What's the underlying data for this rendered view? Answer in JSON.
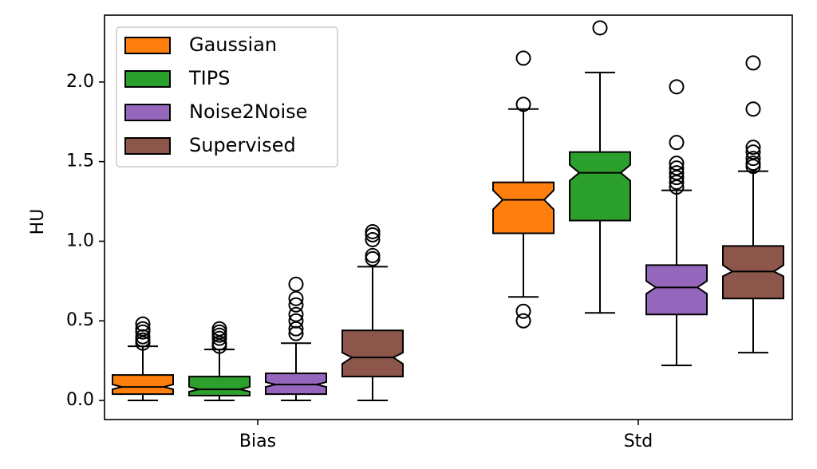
{
  "chart_data": {
    "type": "boxplot",
    "notched": true,
    "groups": [
      "Bias",
      "Std"
    ],
    "ylabel": "HU",
    "xlabel": "",
    "ylim": [
      -0.12,
      2.42
    ],
    "yticks": [
      "0.0",
      "0.5",
      "1.0",
      "1.5",
      "2.0"
    ],
    "legend_position": "top-left",
    "series": [
      {
        "name": "Gaussian",
        "color": "#ff7f0e",
        "boxes": [
          {
            "group": "Bias",
            "whislo": 0.0,
            "q1": 0.04,
            "notch_lo": 0.07,
            "med": 0.085,
            "notch_hi": 0.1,
            "q3": 0.16,
            "whishi": 0.34,
            "fliers": [
              0.36,
              0.38,
              0.4,
              0.43,
              0.45,
              0.48
            ]
          },
          {
            "group": "Std",
            "whislo": 0.65,
            "q1": 1.05,
            "notch_lo": 1.2,
            "med": 1.26,
            "notch_hi": 1.32,
            "q3": 1.37,
            "whishi": 1.83,
            "fliers": [
              0.5,
              0.56,
              1.86,
              2.15
            ]
          }
        ]
      },
      {
        "name": "TIPS",
        "color": "#2ca02c",
        "boxes": [
          {
            "group": "Bias",
            "whislo": 0.0,
            "q1": 0.03,
            "notch_lo": 0.055,
            "med": 0.07,
            "notch_hi": 0.085,
            "q3": 0.15,
            "whishi": 0.32,
            "fliers": [
              0.34,
              0.36,
              0.39,
              0.41,
              0.43,
              0.45
            ]
          },
          {
            "group": "Std",
            "whislo": 0.55,
            "q1": 1.13,
            "notch_lo": 1.38,
            "med": 1.43,
            "notch_hi": 1.48,
            "q3": 1.56,
            "whishi": 2.06,
            "fliers": [
              2.34
            ]
          }
        ]
      },
      {
        "name": "Noise2Noise",
        "color": "#9467bd",
        "boxes": [
          {
            "group": "Bias",
            "whislo": 0.0,
            "q1": 0.04,
            "notch_lo": 0.085,
            "med": 0.1,
            "notch_hi": 0.115,
            "q3": 0.17,
            "whishi": 0.36,
            "fliers": [
              0.42,
              0.45,
              0.5,
              0.54,
              0.6,
              0.64,
              0.73
            ]
          },
          {
            "group": "Std",
            "whislo": 0.22,
            "q1": 0.54,
            "notch_lo": 0.67,
            "med": 0.71,
            "notch_hi": 0.75,
            "q3": 0.85,
            "whishi": 1.32,
            "fliers": [
              1.34,
              1.37,
              1.4,
              1.43,
              1.46,
              1.49,
              1.62,
              1.97
            ]
          }
        ]
      },
      {
        "name": "Supervised",
        "color": "#8c564b",
        "boxes": [
          {
            "group": "Bias",
            "whislo": 0.0,
            "q1": 0.15,
            "notch_lo": 0.23,
            "med": 0.27,
            "notch_hi": 0.3,
            "q3": 0.44,
            "whishi": 0.84,
            "fliers": [
              0.89,
              0.91,
              1.01,
              1.04,
              1.06
            ]
          },
          {
            "group": "Std",
            "whislo": 0.3,
            "q1": 0.64,
            "notch_lo": 0.78,
            "med": 0.81,
            "notch_hi": 0.85,
            "q3": 0.97,
            "whishi": 1.44,
            "fliers": [
              1.47,
              1.49,
              1.52,
              1.56,
              1.59,
              1.83,
              2.12
            ]
          }
        ]
      }
    ]
  }
}
